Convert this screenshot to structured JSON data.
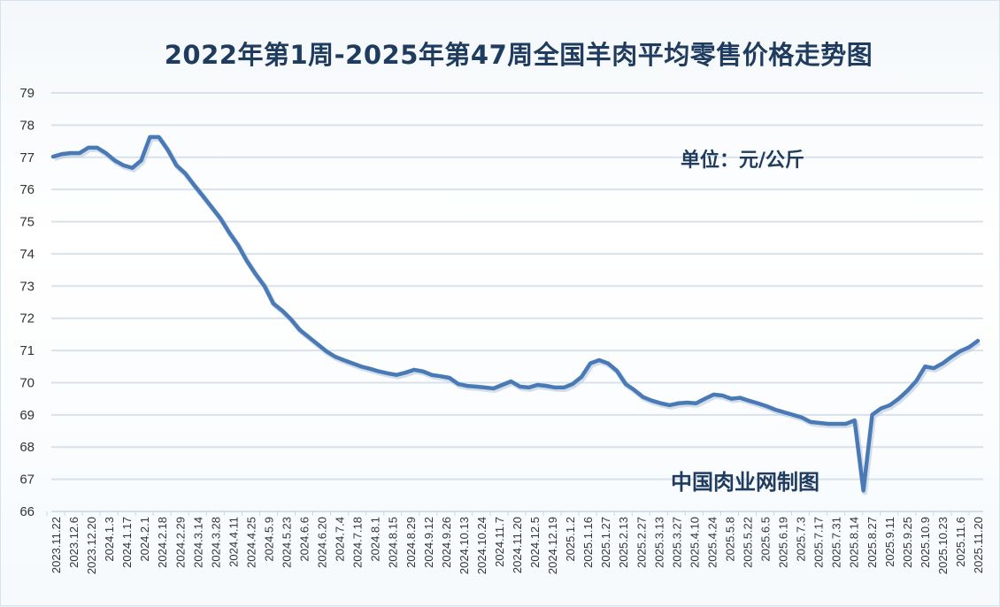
{
  "chart_data": {
    "type": "line",
    "title": "2022年第1周-2025年第47周全国羊肉平均零售价格走势图",
    "unit_label": "单位：元/公斤",
    "credit": "中国肉业网制图",
    "xlabel": "",
    "ylabel": "",
    "ylim": [
      66,
      79
    ],
    "yticks": [
      66,
      67,
      68,
      69,
      70,
      71,
      72,
      73,
      74,
      75,
      76,
      77,
      78,
      79
    ],
    "grid": true,
    "line_color": "#4a7ab5",
    "x_tick_labels": [
      "2023.11.22",
      "2023.12.6",
      "2023.12.20",
      "2024.1.3",
      "2024.1.17",
      "2024.2.1",
      "2024.2.18",
      "2024.2.29",
      "2024.3.14",
      "2024.3.28",
      "2024.4.11",
      "2024.4.25",
      "2024.5.9",
      "2024.5.23",
      "2024.6.6",
      "2024.6.20",
      "2024.7.4",
      "2024.7.18",
      "2024.8.1",
      "2024.8.15",
      "2024.8.29",
      "2024.9.12",
      "2024.9.26",
      "2024.10.13",
      "2024.10.24",
      "2024.11.7",
      "2024.11.20",
      "2024.12.5",
      "2024.12.19",
      "2025.1.2",
      "2025.1.16",
      "2025.1.27",
      "2025.2.13",
      "2025.2.27",
      "2025.3.13",
      "2025.3.27",
      "2025.4.10",
      "2025.4.24",
      "2025.5.8",
      "2025.5.22",
      "2025.6.5",
      "2025.6.19",
      "2025.7.3",
      "2025.7.17",
      "2025.7.31",
      "2025.8.14",
      "2025.8.27",
      "2025.9.11",
      "2025.9.25",
      "2025.10.9",
      "2025.10.23",
      "2025.11.6",
      "2025.11.20"
    ],
    "series": [
      {
        "name": "全国羊肉平均零售价格",
        "values": [
          77.02,
          77.1,
          77.13,
          77.13,
          77.3,
          77.3,
          77.13,
          76.9,
          76.75,
          76.67,
          76.9,
          77.63,
          77.63,
          77.24,
          76.75,
          76.5,
          76.14,
          75.8,
          75.45,
          75.1,
          74.66,
          74.27,
          73.78,
          73.37,
          73.0,
          72.46,
          72.24,
          71.97,
          71.64,
          71.42,
          71.2,
          70.98,
          70.81,
          70.7,
          70.6,
          70.5,
          70.43,
          70.35,
          70.29,
          70.24,
          70.31,
          70.4,
          70.35,
          70.24,
          70.2,
          70.15,
          69.96,
          69.9,
          69.88,
          69.85,
          69.82,
          69.93,
          70.04,
          69.88,
          69.85,
          69.93,
          69.9,
          69.85,
          69.85,
          69.96,
          70.18,
          70.6,
          70.7,
          70.6,
          70.37,
          69.96,
          69.77,
          69.55,
          69.44,
          69.36,
          69.3,
          69.36,
          69.38,
          69.36,
          69.5,
          69.63,
          69.6,
          69.5,
          69.53,
          69.44,
          69.36,
          69.27,
          69.16,
          69.08,
          69.0,
          68.92,
          68.78,
          68.75,
          68.72,
          68.72,
          68.72,
          68.83,
          66.65,
          69.0,
          69.2,
          69.3,
          69.5,
          69.75,
          70.05,
          70.5,
          70.45,
          70.6,
          70.8,
          70.98,
          71.1,
          71.3
        ]
      }
    ]
  }
}
